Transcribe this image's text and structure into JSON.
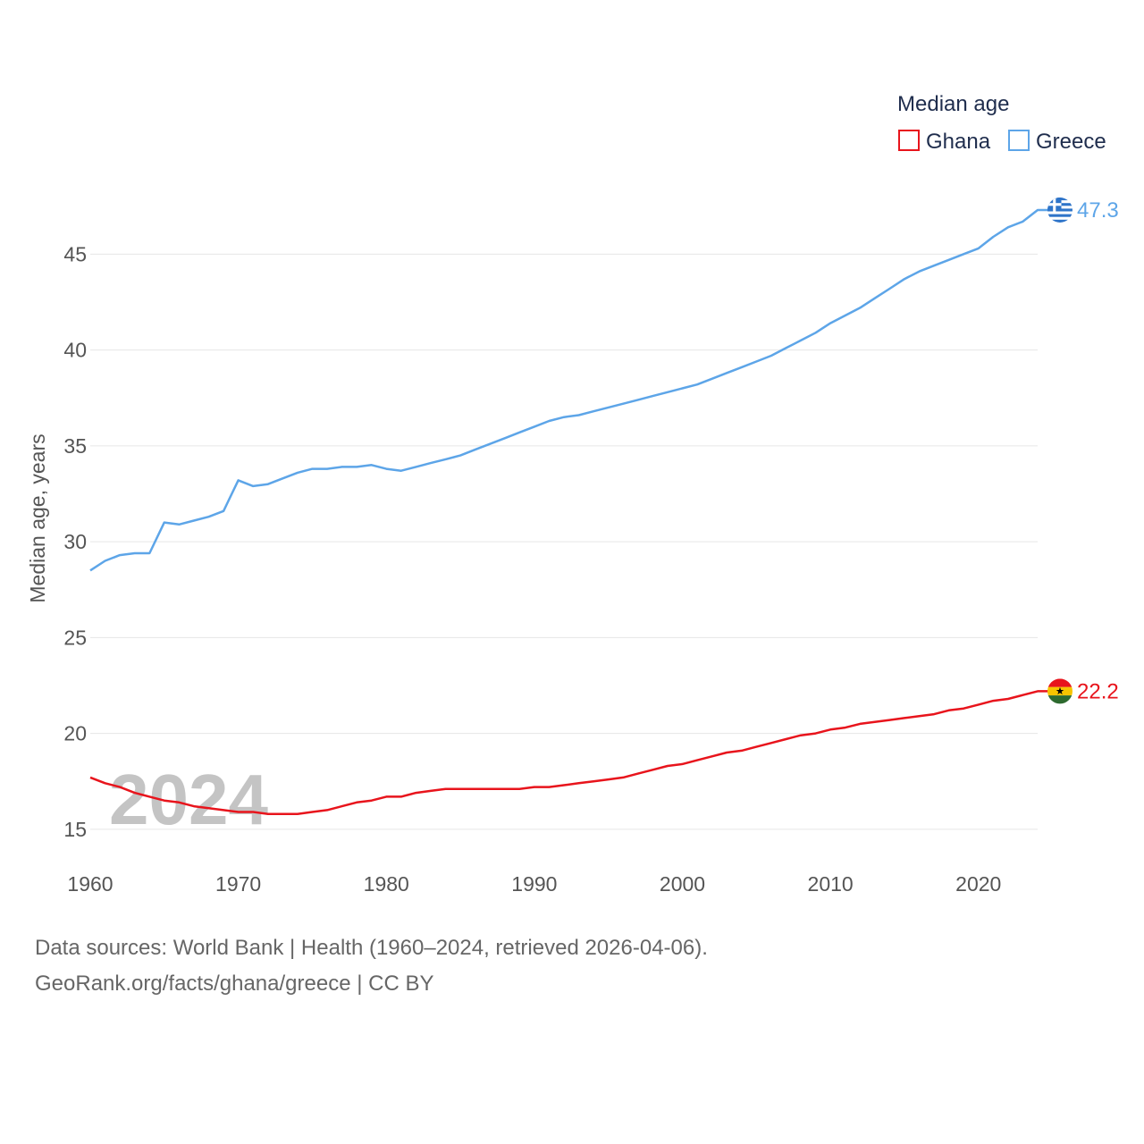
{
  "chart_data": {
    "type": "line",
    "title": "Median age",
    "ylabel": "Median age, years",
    "xlabel": "",
    "xlim": [
      1960,
      2024
    ],
    "ylim": [
      13.5,
      48
    ],
    "yticks": [
      15,
      20,
      25,
      30,
      35,
      40,
      45
    ],
    "xticks": [
      1960,
      1970,
      1980,
      1990,
      2000,
      2010,
      2020
    ],
    "current_year": "2024",
    "x": [
      1960,
      1961,
      1962,
      1963,
      1964,
      1965,
      1966,
      1967,
      1968,
      1969,
      1970,
      1971,
      1972,
      1973,
      1974,
      1975,
      1976,
      1977,
      1978,
      1979,
      1980,
      1981,
      1982,
      1983,
      1984,
      1985,
      1986,
      1987,
      1988,
      1989,
      1990,
      1991,
      1992,
      1993,
      1994,
      1995,
      1996,
      1997,
      1998,
      1999,
      2000,
      2001,
      2002,
      2003,
      2004,
      2005,
      2006,
      2007,
      2008,
      2009,
      2010,
      2011,
      2012,
      2013,
      2014,
      2015,
      2016,
      2017,
      2018,
      2019,
      2020,
      2021,
      2022,
      2023,
      2024
    ],
    "series": [
      {
        "name": "Ghana",
        "color": "#e8141c",
        "end_label": "22.2",
        "flag": "ghana-flag",
        "values": [
          17.7,
          17.4,
          17.2,
          16.9,
          16.7,
          16.5,
          16.4,
          16.2,
          16.1,
          16.0,
          15.9,
          15.9,
          15.8,
          15.8,
          15.8,
          15.9,
          16.0,
          16.2,
          16.4,
          16.5,
          16.7,
          16.7,
          16.9,
          17.0,
          17.1,
          17.1,
          17.1,
          17.1,
          17.1,
          17.1,
          17.2,
          17.2,
          17.3,
          17.4,
          17.5,
          17.6,
          17.7,
          17.9,
          18.1,
          18.3,
          18.4,
          18.6,
          18.8,
          19.0,
          19.1,
          19.3,
          19.5,
          19.7,
          19.9,
          20.0,
          20.2,
          20.3,
          20.5,
          20.6,
          20.7,
          20.8,
          20.9,
          21.0,
          21.2,
          21.3,
          21.5,
          21.7,
          21.8,
          22.0,
          22.2
        ]
      },
      {
        "name": "Greece",
        "color": "#5da5e8",
        "end_label": "47.3",
        "flag": "greece-flag",
        "values": [
          28.5,
          29.0,
          29.3,
          29.4,
          29.4,
          31.0,
          30.9,
          31.1,
          31.3,
          31.6,
          33.2,
          32.9,
          33.0,
          33.3,
          33.6,
          33.8,
          33.8,
          33.9,
          33.9,
          34.0,
          33.8,
          33.7,
          33.9,
          34.1,
          34.3,
          34.5,
          34.8,
          35.1,
          35.4,
          35.7,
          36.0,
          36.3,
          36.5,
          36.6,
          36.8,
          37.0,
          37.2,
          37.4,
          37.6,
          37.8,
          38.0,
          38.2,
          38.5,
          38.8,
          39.1,
          39.4,
          39.7,
          40.1,
          40.5,
          40.9,
          41.4,
          41.8,
          42.2,
          42.7,
          43.2,
          43.7,
          44.1,
          44.4,
          44.7,
          45.0,
          45.3,
          45.9,
          46.4,
          46.7,
          47.3
        ]
      }
    ]
  },
  "legend": {
    "title": "Median age",
    "items": [
      {
        "label": "Ghana",
        "color": "#e8141c"
      },
      {
        "label": "Greece",
        "color": "#5da5e8"
      }
    ]
  },
  "footer": {
    "sources": "Data sources: World Bank | Health (1960–2024, retrieved 2026-04-06).",
    "attribution": "GeoRank.org/facts/ghana/greece | CC BY"
  },
  "colors": {
    "ghana_red": "#e8141c",
    "ghana_yellow": "#f7c400",
    "ghana_green": "#2d6a2f",
    "greece_blue": "#2e74c9"
  }
}
